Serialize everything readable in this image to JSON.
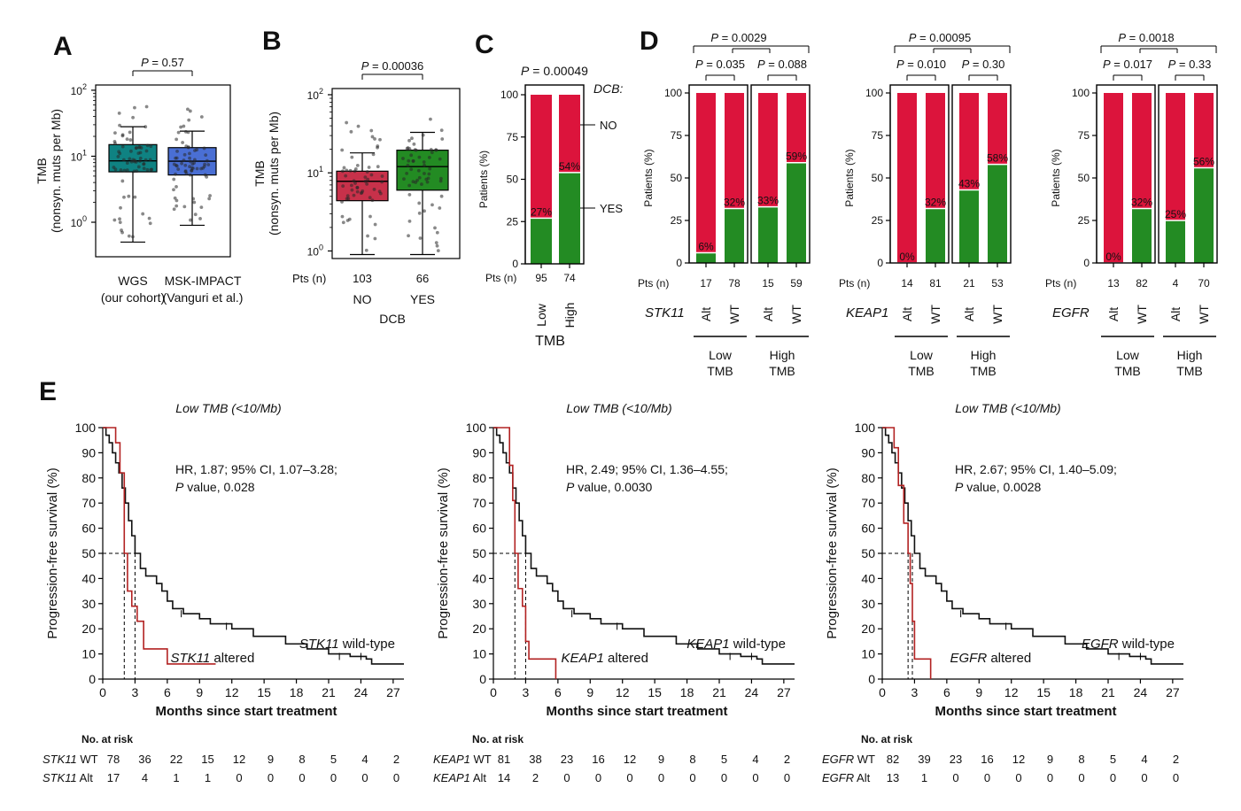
{
  "colors": {
    "red": "#dc143c",
    "green": "#238b23",
    "teal": "#0f8282",
    "blue": "#4a6fd4",
    "crimson": "#c8314a",
    "km_red": "#b22222",
    "black": "#111111"
  },
  "panels": {
    "A": "A",
    "B": "B",
    "C": "C",
    "D": "D",
    "E": "E"
  },
  "chart_data": [
    {
      "id": "A",
      "type": "box",
      "ylabel": "TMB",
      "ylabel2": "(nonsyn. muts per Mb)",
      "y_scale": "log",
      "ylim": [
        0.3,
        120
      ],
      "yticks": [
        {
          "v": 1,
          "label": "10",
          "exp": "0"
        },
        {
          "v": 10,
          "label": "10",
          "exp": "1"
        },
        {
          "v": 100,
          "label": "10",
          "exp": "2"
        }
      ],
      "pvalue": "P = 0.57",
      "groups": [
        {
          "name": "WGS",
          "sub": "(our cohort)",
          "color": "#0f8282",
          "q1": 5.8,
          "median": 8.5,
          "q3": 15,
          "wlow": 0.5,
          "whigh": 28
        },
        {
          "name": "MSK-IMPACT",
          "sub": "(Vanguri et al.)",
          "color": "#4a6fd4",
          "q1": 5.2,
          "median": 8.4,
          "q3": 13.5,
          "wlow": 0.9,
          "whigh": 24
        }
      ]
    },
    {
      "id": "B",
      "type": "box",
      "ylabel": "TMB",
      "ylabel2": "(nonsyn. muts per Mb)",
      "y_scale": "log",
      "ylim": [
        0.8,
        120
      ],
      "yticks": [
        {
          "v": 1,
          "label": "10",
          "exp": "0"
        },
        {
          "v": 10,
          "label": "10",
          "exp": "1"
        },
        {
          "v": 100,
          "label": "10",
          "exp": "2"
        }
      ],
      "pvalue": "P = 0.00036",
      "pts_label": "Pts (n)",
      "xlabel": "DCB",
      "groups": [
        {
          "name": "NO",
          "n": "103",
          "color": "#c8314a",
          "q1": 4.4,
          "median": 7.8,
          "q3": 10.5,
          "wlow": 0.9,
          "whigh": 18
        },
        {
          "name": "YES",
          "n": "66",
          "color": "#238b23",
          "q1": 6.0,
          "median": 12,
          "q3": 19.5,
          "wlow": 0.9,
          "whigh": 33
        }
      ]
    },
    {
      "id": "C",
      "type": "stacked_bar",
      "ylabel": "Patients (%)",
      "ylim": [
        0,
        100
      ],
      "yticks": [
        "0",
        "25",
        "50",
        "75",
        "100"
      ],
      "pvalue": "P = 0.00049",
      "legend_title": "DCB:",
      "legend": [
        "NO",
        "YES"
      ],
      "pts_label": "Pts (n)",
      "categories": [
        "Low",
        "High"
      ],
      "n": [
        "95",
        "74"
      ],
      "yes_values": [
        27,
        54
      ],
      "labels": [
        "27%",
        "54%"
      ],
      "xlabel": "TMB"
    },
    {
      "id": "D1",
      "type": "stacked_bar",
      "ylabel": "Patients (%)",
      "ylim": [
        0,
        100
      ],
      "yticks": [
        "0",
        "25",
        "50",
        "75",
        "100"
      ],
      "gene": "STK11",
      "pts_label": "Pts (n)",
      "p_overall": "P = 0.0029",
      "p_left": "P = 0.035",
      "p_right": "P = 0.088",
      "categories": [
        "Alt",
        "WT",
        "Alt",
        "WT"
      ],
      "n": [
        "17",
        "78",
        "15",
        "59"
      ],
      "yes_values": [
        6,
        32,
        33,
        59
      ],
      "labels": [
        "6%",
        "32%",
        "33%",
        "59%"
      ],
      "groups": [
        {
          "line1": "Low",
          "line2": "TMB"
        },
        {
          "line1": "High",
          "line2": "TMB"
        }
      ]
    },
    {
      "id": "D2",
      "type": "stacked_bar",
      "ylabel": "Patients (%)",
      "ylim": [
        0,
        100
      ],
      "yticks": [
        "0",
        "25",
        "50",
        "75",
        "100"
      ],
      "gene": "KEAP1",
      "pts_label": "Pts (n)",
      "p_overall": "P = 0.00095",
      "p_left": "P = 0.010",
      "p_right": "P = 0.30",
      "categories": [
        "Alt",
        "WT",
        "Alt",
        "WT"
      ],
      "n": [
        "14",
        "81",
        "21",
        "53"
      ],
      "yes_values": [
        0,
        32,
        43,
        58
      ],
      "labels": [
        "0%",
        "32%",
        "43%",
        "58%"
      ],
      "groups": [
        {
          "line1": "Low",
          "line2": "TMB"
        },
        {
          "line1": "High",
          "line2": "TMB"
        }
      ]
    },
    {
      "id": "D3",
      "type": "stacked_bar",
      "ylabel": "Patients (%)",
      "ylim": [
        0,
        100
      ],
      "yticks": [
        "0",
        "25",
        "50",
        "75",
        "100"
      ],
      "gene": "EGFR",
      "pts_label": "Pts (n)",
      "p_overall": "P = 0.0018",
      "p_left": "P = 0.017",
      "p_right": "P = 0.33",
      "categories": [
        "Alt",
        "WT",
        "Alt",
        "WT"
      ],
      "n": [
        "13",
        "82",
        "4",
        "70"
      ],
      "yes_values": [
        0,
        32,
        25,
        56
      ],
      "labels": [
        "0%",
        "32%",
        "25%",
        "56%"
      ],
      "groups": [
        {
          "line1": "Low",
          "line2": "TMB"
        },
        {
          "line1": "High",
          "line2": "TMB"
        }
      ]
    },
    {
      "id": "E1",
      "type": "kaplan_meier",
      "title": "Low TMB (<10/Mb)",
      "gene": "STK11",
      "ylabel": "Progression-free survival (%)",
      "xlabel": "Months since start treatment",
      "xlim": [
        0,
        28
      ],
      "xticks": [
        "0",
        "3",
        "6",
        "9",
        "12",
        "15",
        "18",
        "21",
        "24",
        "27"
      ],
      "ylim": [
        0,
        100
      ],
      "yticks": [
        "0",
        "10",
        "20",
        "30",
        "40",
        "50",
        "60",
        "70",
        "80",
        "90",
        "100"
      ],
      "hr": "HR, 1.87; 95% CI, 1.07–3.28;",
      "p_prefix": "P",
      "p_value": "value, 0.028",
      "wt_label": "wild-type",
      "alt_label": "altered",
      "wt_curve": [
        [
          0,
          100
        ],
        [
          0.3,
          97
        ],
        [
          0.6,
          94
        ],
        [
          0.9,
          90
        ],
        [
          1.2,
          86
        ],
        [
          1.5,
          82
        ],
        [
          1.8,
          76
        ],
        [
          2.1,
          70
        ],
        [
          2.4,
          63
        ],
        [
          2.7,
          57
        ],
        [
          3.0,
          50
        ],
        [
          3.5,
          44
        ],
        [
          4.0,
          41
        ],
        [
          5.0,
          38
        ],
        [
          5.5,
          35
        ],
        [
          6.0,
          31
        ],
        [
          6.5,
          28
        ],
        [
          7.5,
          26
        ],
        [
          9,
          24
        ],
        [
          10,
          22
        ],
        [
          12,
          20
        ],
        [
          14,
          17
        ],
        [
          17,
          14
        ],
        [
          19,
          12
        ],
        [
          21,
          10
        ],
        [
          23,
          9
        ],
        [
          24.5,
          8
        ],
        [
          25,
          6
        ],
        [
          28,
          6
        ]
      ],
      "alt_curve": [
        [
          0,
          100
        ],
        [
          0.8,
          100
        ],
        [
          1.2,
          94
        ],
        [
          1.6,
          82
        ],
        [
          2.0,
          50
        ],
        [
          2.3,
          35
        ],
        [
          2.7,
          29
        ],
        [
          3.2,
          23
        ],
        [
          3.8,
          12
        ],
        [
          6.0,
          6
        ],
        [
          10.5,
          6
        ]
      ],
      "wt_median": 3.0,
      "alt_median": 2.0,
      "risk_title": "No. at risk",
      "risk_wt_label": "WT",
      "risk_alt_label": "Alt",
      "risk_wt": [
        "78",
        "36",
        "22",
        "15",
        "12",
        "9",
        "8",
        "5",
        "4",
        "2"
      ],
      "risk_alt": [
        "17",
        "4",
        "1",
        "1",
        "0",
        "0",
        "0",
        "0",
        "0",
        "0"
      ]
    },
    {
      "id": "E2",
      "type": "kaplan_meier",
      "title": "Low TMB (<10/Mb)",
      "gene": "KEAP1",
      "ylabel": "Progression-free survival (%)",
      "xlabel": "Months since start treatment",
      "xlim": [
        0,
        28
      ],
      "xticks": [
        "0",
        "3",
        "6",
        "9",
        "12",
        "15",
        "18",
        "21",
        "24",
        "27"
      ],
      "ylim": [
        0,
        100
      ],
      "yticks": [
        "0",
        "10",
        "20",
        "30",
        "40",
        "50",
        "60",
        "70",
        "80",
        "90",
        "100"
      ],
      "hr": "HR, 2.49; 95% CI, 1.36–4.55;",
      "p_prefix": "P",
      "p_value": "value, 0.0030",
      "wt_label": "wild-type",
      "alt_label": "altered",
      "wt_curve": [
        [
          0,
          100
        ],
        [
          0.3,
          97
        ],
        [
          0.6,
          94
        ],
        [
          0.9,
          90
        ],
        [
          1.2,
          86
        ],
        [
          1.5,
          82
        ],
        [
          1.8,
          76
        ],
        [
          2.1,
          70
        ],
        [
          2.4,
          63
        ],
        [
          2.7,
          57
        ],
        [
          3.0,
          50
        ],
        [
          3.5,
          44
        ],
        [
          4.0,
          41
        ],
        [
          5.0,
          38
        ],
        [
          5.5,
          35
        ],
        [
          6.0,
          31
        ],
        [
          6.5,
          28
        ],
        [
          7.5,
          26
        ],
        [
          9,
          24
        ],
        [
          10,
          22
        ],
        [
          12,
          20
        ],
        [
          14,
          17
        ],
        [
          17,
          14
        ],
        [
          19,
          12
        ],
        [
          21,
          10
        ],
        [
          23,
          9
        ],
        [
          24.5,
          8
        ],
        [
          25,
          6
        ],
        [
          28,
          6
        ]
      ],
      "alt_curve": [
        [
          0,
          100
        ],
        [
          1.2,
          100
        ],
        [
          1.5,
          85
        ],
        [
          1.8,
          71
        ],
        [
          2.0,
          50
        ],
        [
          2.3,
          36
        ],
        [
          2.7,
          29
        ],
        [
          3.0,
          15
        ],
        [
          3.3,
          8
        ],
        [
          5.8,
          8
        ],
        [
          5.8,
          0
        ]
      ],
      "wt_median": 3.0,
      "alt_median": 2.0,
      "risk_title": "No. at risk",
      "risk_wt_label": "WT",
      "risk_alt_label": "Alt",
      "risk_wt": [
        "81",
        "38",
        "23",
        "16",
        "12",
        "9",
        "8",
        "5",
        "4",
        "2"
      ],
      "risk_alt": [
        "14",
        "2",
        "0",
        "0",
        "0",
        "0",
        "0",
        "0",
        "0",
        "0"
      ]
    },
    {
      "id": "E3",
      "type": "kaplan_meier",
      "title": "Low TMB (<10/Mb)",
      "gene": "EGFR",
      "ylabel": "Progression-free survival (%)",
      "xlabel": "Months since start treatment",
      "xlim": [
        0,
        28
      ],
      "xticks": [
        "0",
        "3",
        "6",
        "9",
        "12",
        "15",
        "18",
        "21",
        "24",
        "27"
      ],
      "ylim": [
        0,
        100
      ],
      "yticks": [
        "0",
        "10",
        "20",
        "30",
        "40",
        "50",
        "60",
        "70",
        "80",
        "90",
        "100"
      ],
      "hr": "HR, 2.67; 95% CI, 1.40–5.09;",
      "p_prefix": "P",
      "p_value": "value, 0.0028",
      "wt_label": "wild-type",
      "alt_label": "altered",
      "wt_curve": [
        [
          0,
          100
        ],
        [
          0.3,
          97
        ],
        [
          0.6,
          94
        ],
        [
          0.9,
          90
        ],
        [
          1.2,
          86
        ],
        [
          1.5,
          82
        ],
        [
          1.8,
          76
        ],
        [
          2.1,
          70
        ],
        [
          2.4,
          63
        ],
        [
          2.7,
          57
        ],
        [
          3.0,
          50
        ],
        [
          3.5,
          44
        ],
        [
          4.0,
          41
        ],
        [
          5.0,
          38
        ],
        [
          5.5,
          35
        ],
        [
          6.0,
          31
        ],
        [
          6.5,
          28
        ],
        [
          7.5,
          26
        ],
        [
          9,
          24
        ],
        [
          10,
          22
        ],
        [
          12,
          20
        ],
        [
          14,
          17
        ],
        [
          17,
          14
        ],
        [
          19,
          12
        ],
        [
          21,
          10
        ],
        [
          23,
          9
        ],
        [
          24.5,
          8
        ],
        [
          25,
          6
        ],
        [
          28,
          6
        ]
      ],
      "alt_curve": [
        [
          0,
          100
        ],
        [
          0.9,
          100
        ],
        [
          1.1,
          92
        ],
        [
          1.5,
          77
        ],
        [
          2.0,
          62
        ],
        [
          2.4,
          50
        ],
        [
          2.6,
          38
        ],
        [
          2.8,
          23
        ],
        [
          3.0,
          8
        ],
        [
          4.5,
          8
        ],
        [
          4.5,
          0
        ]
      ],
      "wt_median": 2.8,
      "alt_median": 2.4,
      "risk_title": "No. at risk",
      "risk_wt_label": "WT",
      "risk_alt_label": "Alt",
      "risk_wt": [
        "82",
        "39",
        "23",
        "16",
        "12",
        "9",
        "8",
        "5",
        "4",
        "2"
      ],
      "risk_alt": [
        "13",
        "1",
        "0",
        "0",
        "0",
        "0",
        "0",
        "0",
        "0",
        "0"
      ]
    }
  ]
}
